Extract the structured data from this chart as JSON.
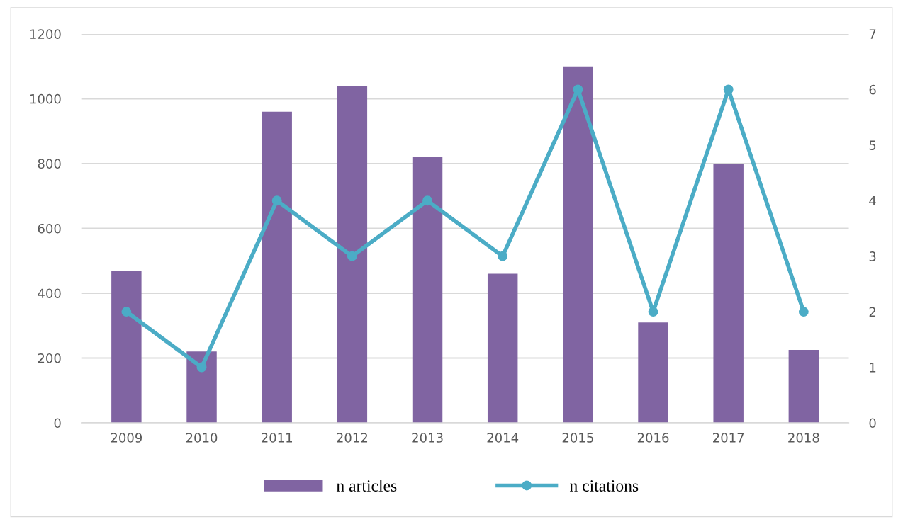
{
  "chart_data": {
    "type": "bar",
    "categories": [
      "2009",
      "2010",
      "2011",
      "2012",
      "2013",
      "2014",
      "2015",
      "2016",
      "2017",
      "2018"
    ],
    "series": [
      {
        "name": "n articles",
        "color": "#8064a2",
        "values": [
          470,
          220,
          960,
          1040,
          820,
          460,
          1100,
          310,
          800,
          225
        ]
      },
      {
        "name": "n citations",
        "type": "line",
        "axis": "y2",
        "color": "#4bacc6",
        "marker": "circle",
        "values": [
          2,
          1,
          4,
          3,
          4,
          3,
          6,
          2,
          6,
          2
        ]
      }
    ],
    "ylim": [
      0,
      1200
    ],
    "yticks": [
      0,
      200,
      400,
      600,
      800,
      1000,
      1200
    ],
    "y2lim": [
      0,
      7
    ],
    "y2ticks": [
      0,
      1,
      2,
      3,
      4,
      5,
      6,
      7
    ],
    "grid": "y",
    "legend": "bottom"
  }
}
